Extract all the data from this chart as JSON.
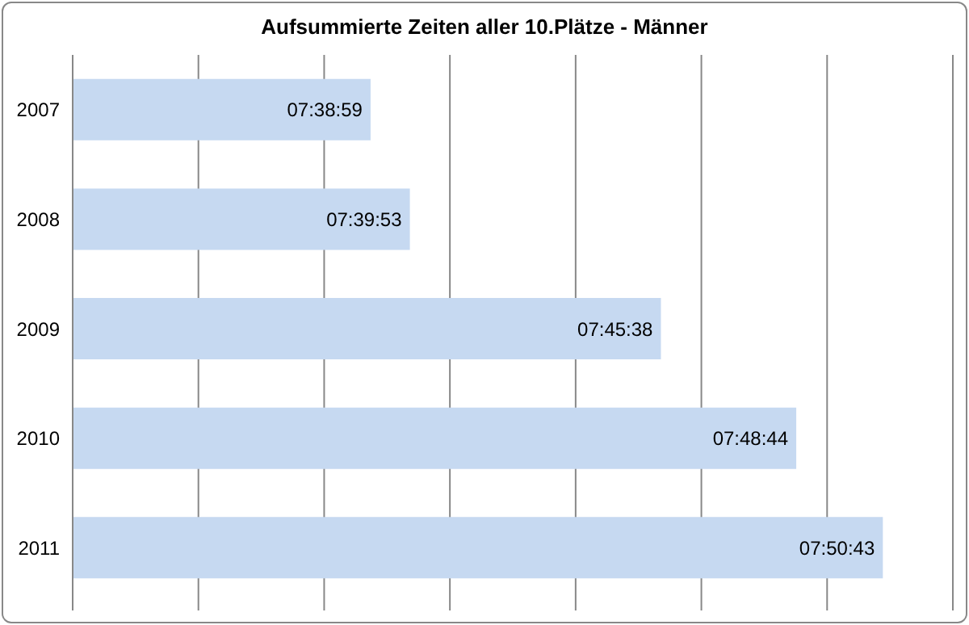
{
  "chart_data": {
    "type": "bar",
    "orientation": "horizontal",
    "title": "Aufsummierte Zeiten aller 10.Plätze - Männer",
    "categories": [
      "2007",
      "2008",
      "2009",
      "2010",
      "2011"
    ],
    "values": [
      27539,
      27593,
      27938,
      28124,
      28243
    ],
    "value_labels": [
      "07:38:59",
      "07:39:53",
      "07:45:38",
      "07:48:44",
      "07:50:43"
    ],
    "color": "#c6d9f1",
    "xlim": [
      27129.6,
      28339.2
    ],
    "xticks": [
      {
        "value": 27129.6,
        "label": null
      },
      {
        "value": 27302.4,
        "label": null
      },
      {
        "value": 27475.2,
        "label": null
      },
      {
        "value": 27648,
        "label": null
      },
      {
        "value": 27820.8,
        "label": null
      },
      {
        "value": 27993.6,
        "label": null
      },
      {
        "value": 28166.4,
        "label": null
      },
      {
        "value": 28339.2,
        "label": null
      }
    ],
    "grid": "x",
    "tick_labels": "y",
    "legend": false
  }
}
